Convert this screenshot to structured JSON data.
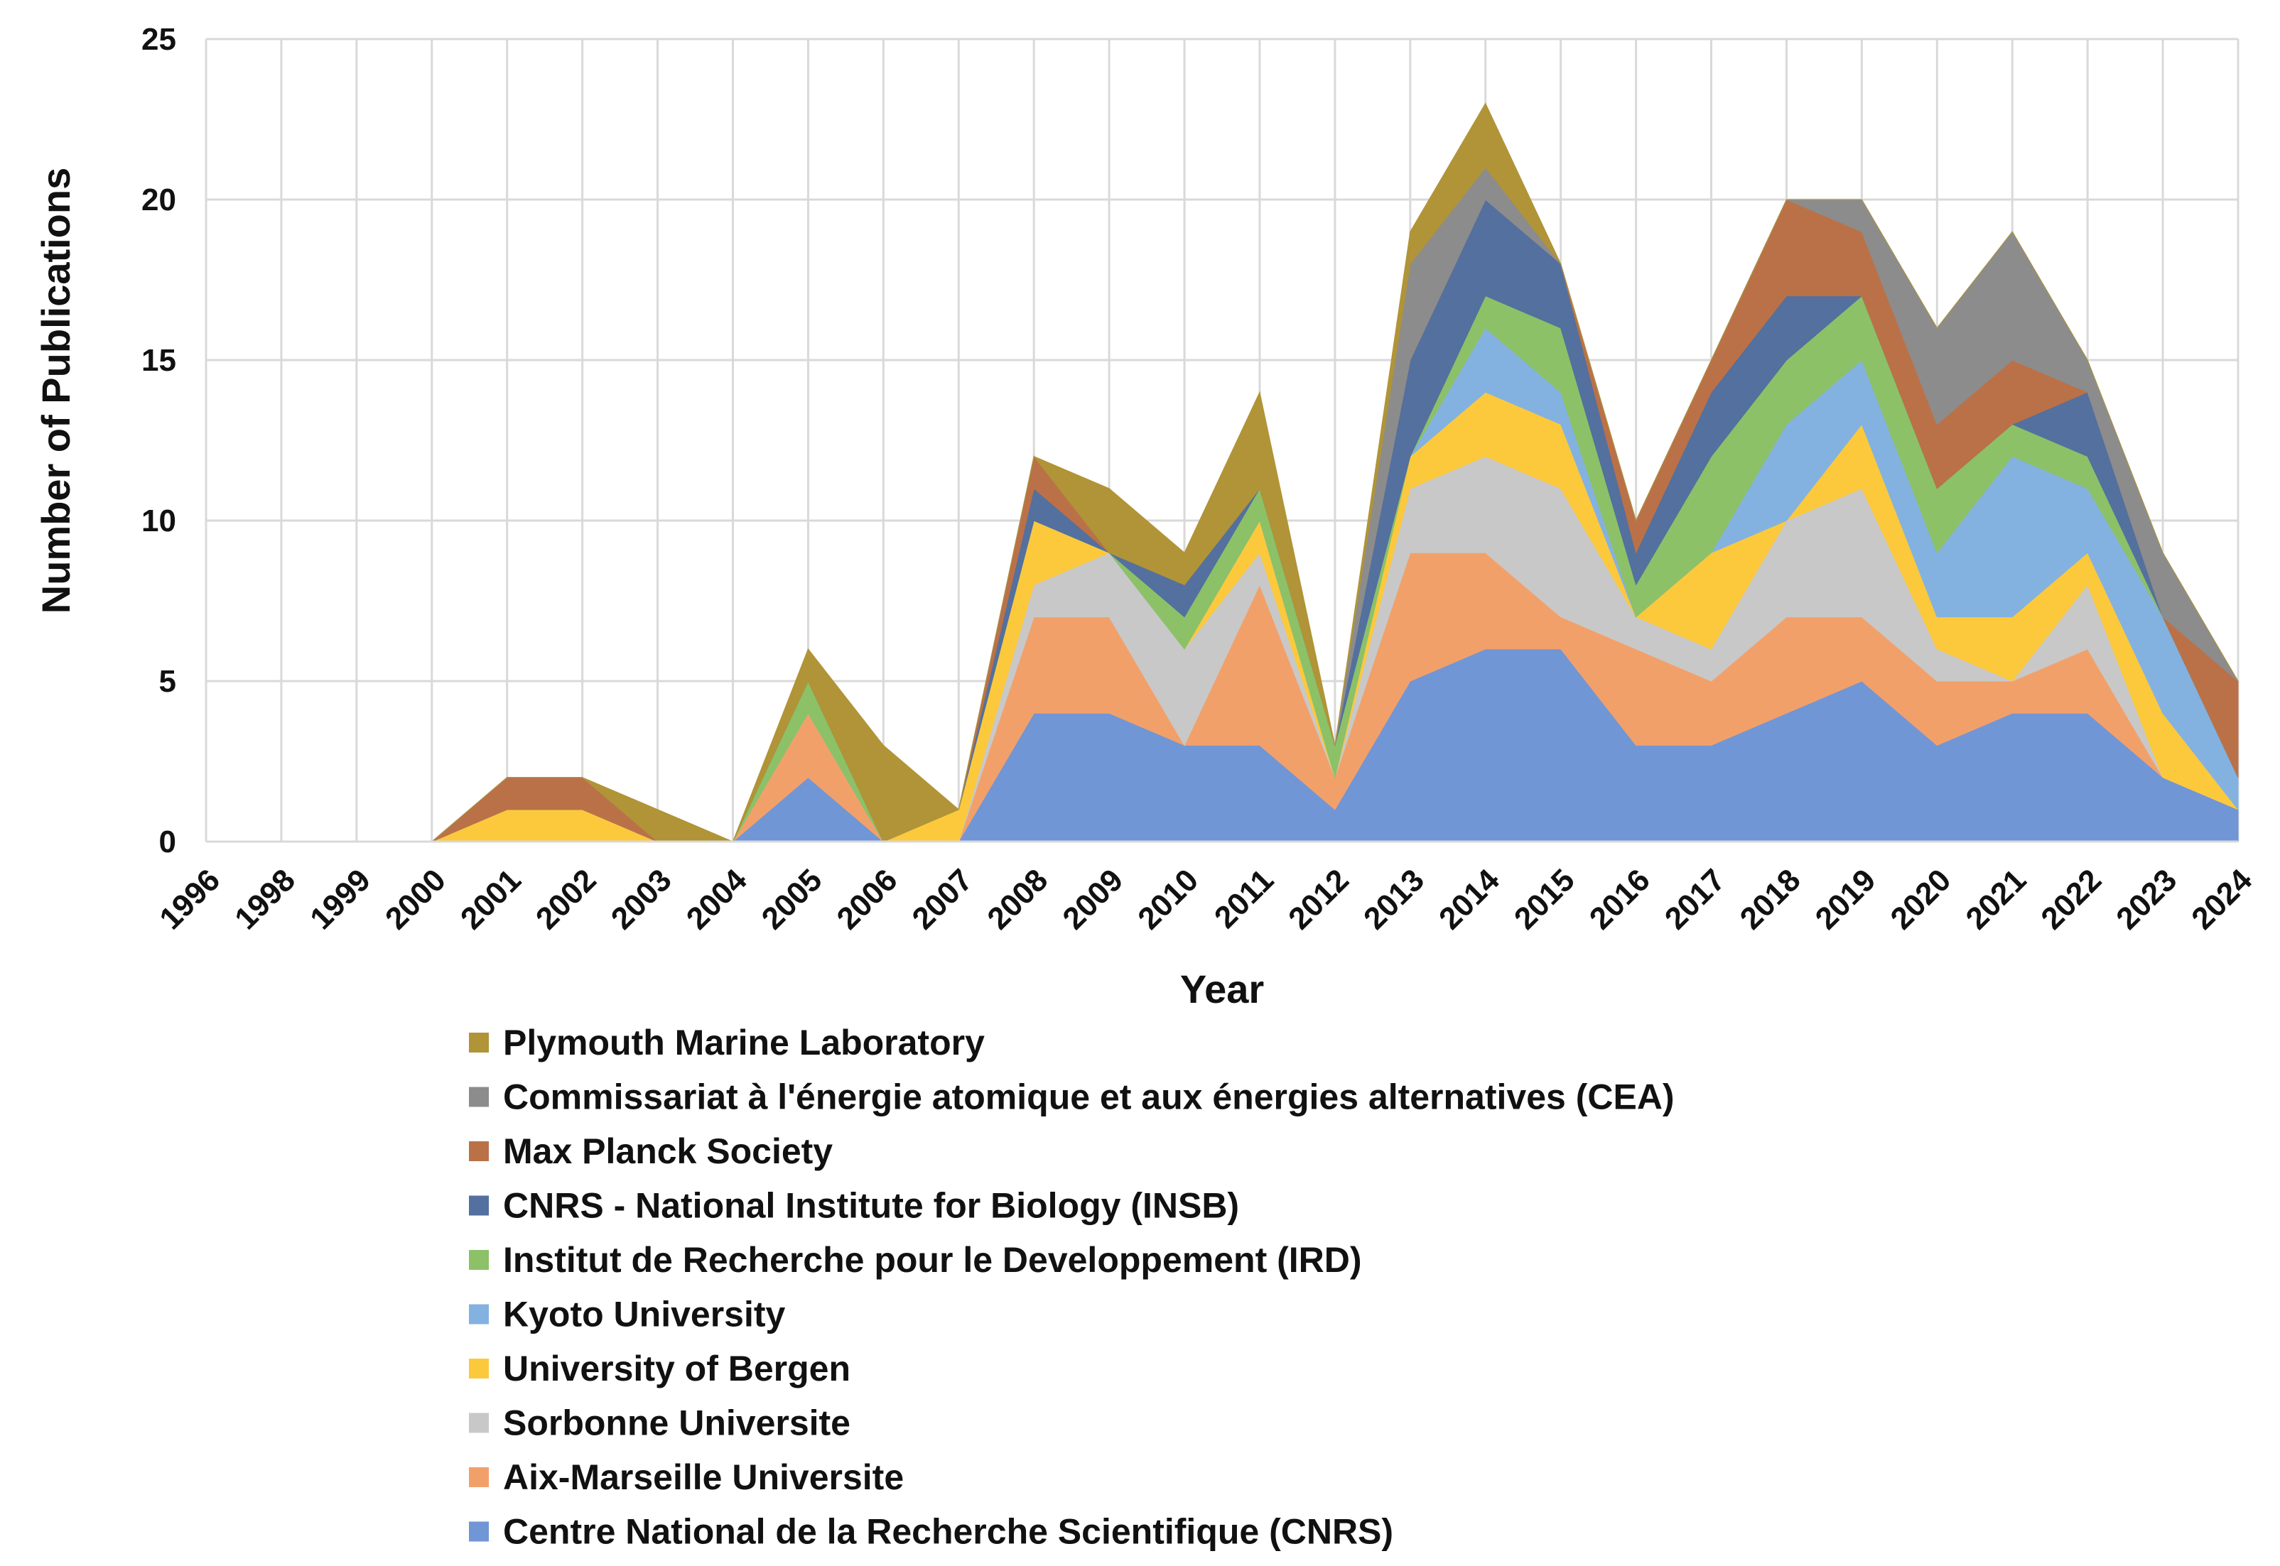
{
  "chart_data": {
    "type": "area",
    "stacked": true,
    "xlabel": "Year",
    "ylabel": "Number of Publications",
    "ylim": [
      0,
      25
    ],
    "yticks": [
      0,
      5,
      10,
      15,
      20,
      25
    ],
    "grid": true,
    "legend_position": "bottom",
    "categories": [
      "1996",
      "1998",
      "1999",
      "2000",
      "2001",
      "2002",
      "2003",
      "2004",
      "2005",
      "2006",
      "2007",
      "2008",
      "2009",
      "2010",
      "2011",
      "2012",
      "2013",
      "2014",
      "2015",
      "2016",
      "2017",
      "2018",
      "2019",
      "2020",
      "2021",
      "2022",
      "2023",
      "2024"
    ],
    "series": [
      {
        "name": "Centre National de la Recherche Scientifique (CNRS)",
        "color": "#7096d6",
        "values": [
          0,
          0,
          0,
          0,
          0,
          0,
          0,
          0,
          2,
          0,
          0,
          4,
          4,
          3,
          3,
          1,
          5,
          6,
          6,
          3,
          3,
          4,
          5,
          3,
          4,
          4,
          2,
          1
        ]
      },
      {
        "name": "Aix-Marseille Universite",
        "color": "#f2a06a",
        "values": [
          0,
          0,
          0,
          0,
          0,
          0,
          0,
          0,
          2,
          0,
          0,
          3,
          3,
          0,
          5,
          1,
          4,
          3,
          1,
          3,
          2,
          3,
          2,
          2,
          1,
          2,
          0,
          0
        ]
      },
      {
        "name": "Sorbonne Universite",
        "color": "#c8c8c8",
        "values": [
          0,
          0,
          0,
          0,
          0,
          0,
          0,
          0,
          0,
          0,
          0,
          1,
          2,
          3,
          1,
          0,
          2,
          3,
          4,
          1,
          1,
          3,
          4,
          1,
          0,
          2,
          0,
          0
        ]
      },
      {
        "name": "University of Bergen",
        "color": "#fcc93c",
        "values": [
          0,
          0,
          0,
          0,
          1,
          1,
          0,
          0,
          0,
          0,
          1,
          2,
          0,
          0,
          1,
          0,
          1,
          2,
          2,
          0,
          3,
          0,
          2,
          1,
          2,
          1,
          2,
          0
        ]
      },
      {
        "name": "Kyoto University",
        "color": "#83b2e0",
        "values": [
          0,
          0,
          0,
          0,
          0,
          0,
          0,
          0,
          0,
          0,
          0,
          0,
          0,
          0,
          0,
          0,
          0,
          2,
          1,
          0,
          0,
          3,
          2,
          2,
          5,
          2,
          3,
          1
        ]
      },
      {
        "name": "Institut de Recherche pour le Developpement (IRD)",
        "color": "#8cc168",
        "values": [
          0,
          0,
          0,
          0,
          0,
          0,
          0,
          0,
          1,
          0,
          0,
          0,
          0,
          1,
          1,
          1,
          0,
          1,
          2,
          1,
          3,
          2,
          2,
          2,
          1,
          1,
          0,
          0
        ]
      },
      {
        "name": "CNRS - National Institute for Biology (INSB)",
        "color": "#53709e",
        "values": [
          0,
          0,
          0,
          0,
          0,
          0,
          0,
          0,
          0,
          0,
          0,
          1,
          0,
          1,
          0,
          0,
          3,
          3,
          2,
          1,
          2,
          2,
          0,
          0,
          0,
          2,
          0,
          0
        ]
      },
      {
        "name": "Max Planck Society",
        "color": "#bb7147",
        "values": [
          0,
          0,
          0,
          0,
          1,
          1,
          0,
          0,
          0,
          0,
          0,
          1,
          0,
          0,
          0,
          0,
          0,
          0,
          0,
          1,
          1,
          3,
          2,
          2,
          2,
          0,
          0,
          3
        ]
      },
      {
        "name": "Commissariat à l'énergie atomique et aux énergies alternatives (CEA)",
        "color": "#8c8c8c",
        "values": [
          0,
          0,
          0,
          0,
          0,
          0,
          0,
          0,
          0,
          0,
          0,
          0,
          0,
          0,
          0,
          0,
          3,
          1,
          0,
          0,
          0,
          0,
          1,
          3,
          4,
          1,
          2,
          0
        ]
      },
      {
        "name": "Plymouth Marine Laboratory",
        "color": "#b09437",
        "values": [
          0,
          0,
          0,
          0,
          0,
          0,
          1,
          0,
          1,
          3,
          0,
          0,
          2,
          1,
          3,
          0,
          1,
          2,
          0,
          0,
          0,
          0,
          0,
          0,
          0,
          0,
          0,
          0
        ]
      }
    ]
  }
}
